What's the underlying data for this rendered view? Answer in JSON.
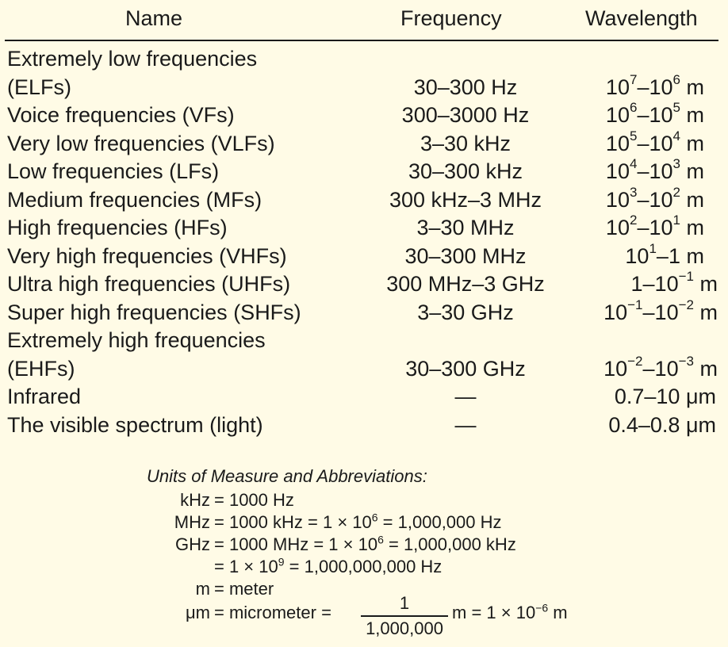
{
  "table": {
    "headers": {
      "name": "Name",
      "frequency": "Frequency",
      "wavelength": "Wavelength"
    },
    "rows": [
      {
        "name_lines": [
          "Extremely low frequencies",
          "(ELFs)"
        ],
        "frequency": "30–300 Hz",
        "wavelength": {
          "base": "10",
          "exp1": "7",
          "sep": "–",
          "base2": "10",
          "exp2": "6",
          "unit": "m"
        }
      },
      {
        "name_lines": [
          "Voice frequencies (VFs)"
        ],
        "frequency": "300–3000 Hz",
        "wavelength": {
          "base": "10",
          "exp1": "6",
          "sep": "–",
          "base2": "10",
          "exp2": "5",
          "unit": "m"
        }
      },
      {
        "name_lines": [
          "Very low frequencies (VLFs)"
        ],
        "frequency": "3–30 kHz",
        "wavelength": {
          "base": "10",
          "exp1": "5",
          "sep": "–",
          "base2": "10",
          "exp2": "4",
          "unit": "m"
        }
      },
      {
        "name_lines": [
          "Low frequencies (LFs)"
        ],
        "frequency": "30–300 kHz",
        "wavelength": {
          "base": "10",
          "exp1": "4",
          "sep": "–",
          "base2": "10",
          "exp2": "3",
          "unit": "m"
        }
      },
      {
        "name_lines": [
          "Medium frequencies (MFs)"
        ],
        "frequency": "300 kHz–3 MHz",
        "wavelength": {
          "base": "10",
          "exp1": "3",
          "sep": "–",
          "base2": "10",
          "exp2": "2",
          "unit": "m"
        }
      },
      {
        "name_lines": [
          "High frequencies (HFs)"
        ],
        "frequency": "3–30 MHz",
        "wavelength": {
          "base": "10",
          "exp1": "2",
          "sep": "–",
          "base2": "10",
          "exp2": "1",
          "unit": "m"
        }
      },
      {
        "name_lines": [
          "Very high frequencies (VHFs)"
        ],
        "frequency": "30–300 MHz",
        "wavelength": {
          "base": "10",
          "exp1": "1",
          "sep": "–",
          "base2": "1",
          "exp2": "",
          "unit": "m"
        }
      },
      {
        "name_lines": [
          "Ultra high frequencies (UHFs)"
        ],
        "frequency": "300 MHz–3 GHz",
        "wavelength": {
          "base": "1",
          "exp1": "",
          "sep": "–",
          "base2": "10",
          "exp2": "−1",
          "unit": "m"
        }
      },
      {
        "name_lines": [
          "Super high frequencies (SHFs)"
        ],
        "frequency": "3–30 GHz",
        "wavelength": {
          "base": "10",
          "exp1": "−1",
          "sep": "–",
          "base2": "10",
          "exp2": "−2",
          "unit": "m"
        }
      },
      {
        "name_lines": [
          "Extremely high frequencies",
          "(EHFs)"
        ],
        "frequency": "30–300 GHz",
        "wavelength": {
          "base": "10",
          "exp1": "−2",
          "sep": "–",
          "base2": "10",
          "exp2": "−3",
          "unit": "m"
        }
      },
      {
        "name_lines": [
          "Infrared"
        ],
        "frequency": "—",
        "wavelength_text": "0.7–10 μm"
      },
      {
        "name_lines": [
          "The visible spectrum (light)"
        ],
        "frequency": "—",
        "wavelength_text": "0.4–0.8 μm"
      }
    ]
  },
  "units": {
    "title": "Units of Measure and Abbreviations:",
    "lines": [
      {
        "lhs": "kHz",
        "rhs": "= 1000 Hz"
      },
      {
        "lhs": "MHz",
        "rhs_pre": "= 1000 kHz = 1 × 10",
        "rhs_exp": "6",
        "rhs_post": " = 1,000,000 Hz"
      },
      {
        "lhs": "GHz",
        "rhs_pre": "= 1000 MHz = 1 × 10",
        "rhs_exp": "6",
        "rhs_post": " = 1,000,000 kHz"
      },
      {
        "lhs": "",
        "rhs_pre": "= 1 × 10",
        "rhs_exp": "9",
        "rhs_post": " = 1,000,000,000 Hz"
      },
      {
        "lhs": "m",
        "rhs": "= meter"
      },
      {
        "lhs": "μm",
        "rhs": "= micrometer ="
      }
    ],
    "fraction": {
      "numerator": "1",
      "denominator": "1,000,000"
    },
    "fraction_tail_pre": "m = 1 × 10",
    "fraction_tail_exp": "−6",
    "fraction_tail_post": " m"
  }
}
